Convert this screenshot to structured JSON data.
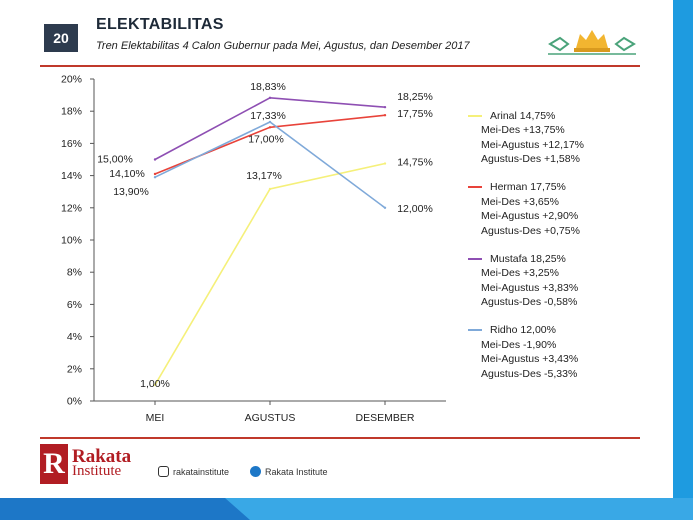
{
  "header": {
    "slide_number": "20",
    "title": "ELEKTABILITAS",
    "subtitle": "Tren Elektabilitas 4 Calon Gubernur pada Mei, Agustus, dan Desember 2017"
  },
  "colors": {
    "Arinal": "#f5f07a",
    "Herman": "#e8433a",
    "Mustafa": "#8e4fb3",
    "Ridho": "#7fa9d9",
    "accent_rule": "#c0392b",
    "side_stripe": "#1e9be0"
  },
  "chart_data": {
    "type": "line",
    "categories": [
      "MEI",
      "AGUSTUS",
      "DESEMBER"
    ],
    "ylim": [
      0,
      20
    ],
    "yticks": [
      "0%",
      "2%",
      "4%",
      "6%",
      "8%",
      "10%",
      "12%",
      "14%",
      "16%",
      "18%",
      "20%"
    ],
    "grid": false,
    "legend_position": "right",
    "series": [
      {
        "key": "Arinal",
        "values": [
          1.0,
          13.17,
          14.75
        ],
        "labels": [
          "1,00%",
          "13,17%",
          "14,75%"
        ]
      },
      {
        "key": "Herman",
        "values": [
          14.1,
          17.0,
          17.75
        ],
        "labels": [
          "14,10%",
          "17,00%",
          "17,75%"
        ]
      },
      {
        "key": "Mustafa",
        "values": [
          15.0,
          18.83,
          18.25
        ],
        "labels": [
          "15,00%",
          "18,83%",
          "18,25%"
        ]
      },
      {
        "key": "Ridho",
        "values": [
          13.9,
          17.33,
          12.0
        ],
        "labels": [
          "13,90%",
          "17,33%",
          "12,00%"
        ]
      }
    ]
  },
  "legend": [
    {
      "key": "Arinal",
      "title": "Arinal 14,75%",
      "lines": [
        "Mei-Des +13,75%",
        "Mei-Agustus +12,17%",
        "Agustus-Des +1,58%"
      ]
    },
    {
      "key": "Herman",
      "title": "Herman 17,75%",
      "lines": [
        "Mei-Des +3,65%",
        "Mei-Agustus +2,90%",
        "Agustus-Des +0,75%"
      ]
    },
    {
      "key": "Mustafa",
      "title": "Mustafa 18,25%",
      "lines": [
        "Mei-Des +3,25%",
        "Mei-Agustus +3,83%",
        "Agustus-Des -0,58%"
      ]
    },
    {
      "key": "Ridho",
      "title": "Ridho 12,00%",
      "lines": [
        "Mei-Des -1,90%",
        "Mei-Agustus +3,43%",
        "Agustus-Des -5,33%"
      ]
    }
  ],
  "footer": {
    "logo_text": "Rakata",
    "logo_sub": "Institute",
    "instagram": "rakatainstitute",
    "facebook": "Rakata Institute"
  }
}
